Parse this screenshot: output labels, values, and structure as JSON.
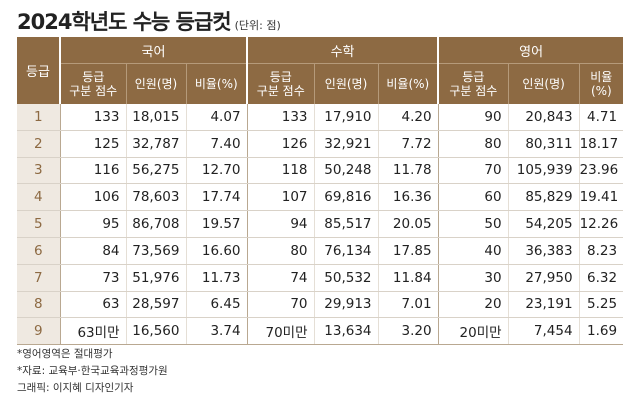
{
  "title": "2024학년도 수능 등급컷",
  "unit": "(단위: 점)",
  "grade_header": "등급",
  "subjects": [
    "국어",
    "수학",
    "영어"
  ],
  "sub_headers": {
    "cut_line1": "등급",
    "cut_line2": "구분 점수",
    "people": "인원(명)",
    "ratio": "비율(%)"
  },
  "rows": [
    {
      "grade": "1",
      "kor": [
        "133",
        "18,015",
        "4.07"
      ],
      "math": [
        "133",
        "17,910",
        "4.20"
      ],
      "eng": [
        "90",
        "20,843",
        "4.71"
      ]
    },
    {
      "grade": "2",
      "kor": [
        "125",
        "32,787",
        "7.40"
      ],
      "math": [
        "126",
        "32,921",
        "7.72"
      ],
      "eng": [
        "80",
        "80,311",
        "18.17"
      ]
    },
    {
      "grade": "3",
      "kor": [
        "116",
        "56,275",
        "12.70"
      ],
      "math": [
        "118",
        "50,248",
        "11.78"
      ],
      "eng": [
        "70",
        "105,939",
        "23.96"
      ]
    },
    {
      "grade": "4",
      "kor": [
        "106",
        "78,603",
        "17.74"
      ],
      "math": [
        "107",
        "69,816",
        "16.36"
      ],
      "eng": [
        "60",
        "85,829",
        "19.41"
      ]
    },
    {
      "grade": "5",
      "kor": [
        "95",
        "86,708",
        "19.57"
      ],
      "math": [
        "94",
        "85,517",
        "20.05"
      ],
      "eng": [
        "50",
        "54,205",
        "12.26"
      ]
    },
    {
      "grade": "6",
      "kor": [
        "84",
        "73,569",
        "16.60"
      ],
      "math": [
        "80",
        "76,134",
        "17.85"
      ],
      "eng": [
        "40",
        "36,383",
        "8.23"
      ]
    },
    {
      "grade": "7",
      "kor": [
        "73",
        "51,976",
        "11.73"
      ],
      "math": [
        "74",
        "50,532",
        "11.84"
      ],
      "eng": [
        "30",
        "27,950",
        "6.32"
      ]
    },
    {
      "grade": "8",
      "kor": [
        "63",
        "28,597",
        "6.45"
      ],
      "math": [
        "70",
        "29,913",
        "7.01"
      ],
      "eng": [
        "20",
        "23,191",
        "5.25"
      ]
    },
    {
      "grade": "9",
      "kor": [
        "63미만",
        "16,560",
        "3.74"
      ],
      "math": [
        "70미만",
        "13,634",
        "3.20"
      ],
      "eng": [
        "20미만",
        "7,454",
        "1.69"
      ]
    }
  ],
  "notes": [
    "*영어영역은 절대평가",
    "*자료: 교육부·한국교육과정평가원",
    "그래픽: 이지혜 디자인기자"
  ],
  "colors": {
    "header_bg": "#8d6a43",
    "grade_col_bg": "#efe9e1",
    "grade_text": "#8d6a43"
  }
}
